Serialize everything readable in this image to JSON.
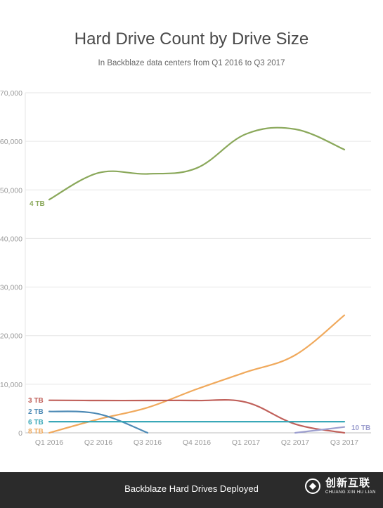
{
  "chart_data": {
    "type": "line",
    "title": "Hard Drive Count by Drive Size",
    "subtitle": "In Backblaze data centers from Q1 2016 to Q3 2017",
    "categories": [
      "Q1 2016",
      "Q2 2016",
      "Q3 2016",
      "Q4 2016",
      "Q1 2017",
      "Q2 2017",
      "Q3 2017"
    ],
    "ylim": [
      0,
      70000
    ],
    "yticks": [
      0,
      10000,
      20000,
      30000,
      40000,
      50000,
      60000,
      70000
    ],
    "ytick_labels": [
      "0",
      "10,000",
      "20,000",
      "30,000",
      "40,000",
      "50,000",
      "60,000",
      "70,000"
    ],
    "grid": true,
    "series": [
      {
        "name": "4 TB",
        "color": "#8aa85a",
        "values": [
          48000,
          53500,
          53300,
          54500,
          61500,
          62500,
          58300
        ]
      },
      {
        "name": "8 TB",
        "color": "#f0a95c",
        "values": [
          0,
          2800,
          5200,
          9000,
          12500,
          16000,
          24200
        ]
      },
      {
        "name": "3 TB",
        "color": "#c0605a",
        "values": [
          6700,
          6650,
          6650,
          6650,
          6300,
          1800,
          0
        ]
      },
      {
        "name": "2 TB",
        "color": "#4d8ab5",
        "values": [
          4400,
          3900,
          0,
          null,
          null,
          null,
          null
        ]
      },
      {
        "name": "6 TB",
        "color": "#3aa8b8",
        "values": [
          2300,
          2300,
          2300,
          2300,
          2300,
          2300,
          2300
        ]
      },
      {
        "name": "10 TB",
        "color": "#9d9fcf",
        "values": [
          null,
          null,
          null,
          null,
          null,
          0,
          1200
        ]
      }
    ]
  },
  "caption": "Backblaze Hard Drives Deployed",
  "watermark": {
    "main": "创新互联",
    "sub": "CHUANG XIN HU LIAN"
  }
}
